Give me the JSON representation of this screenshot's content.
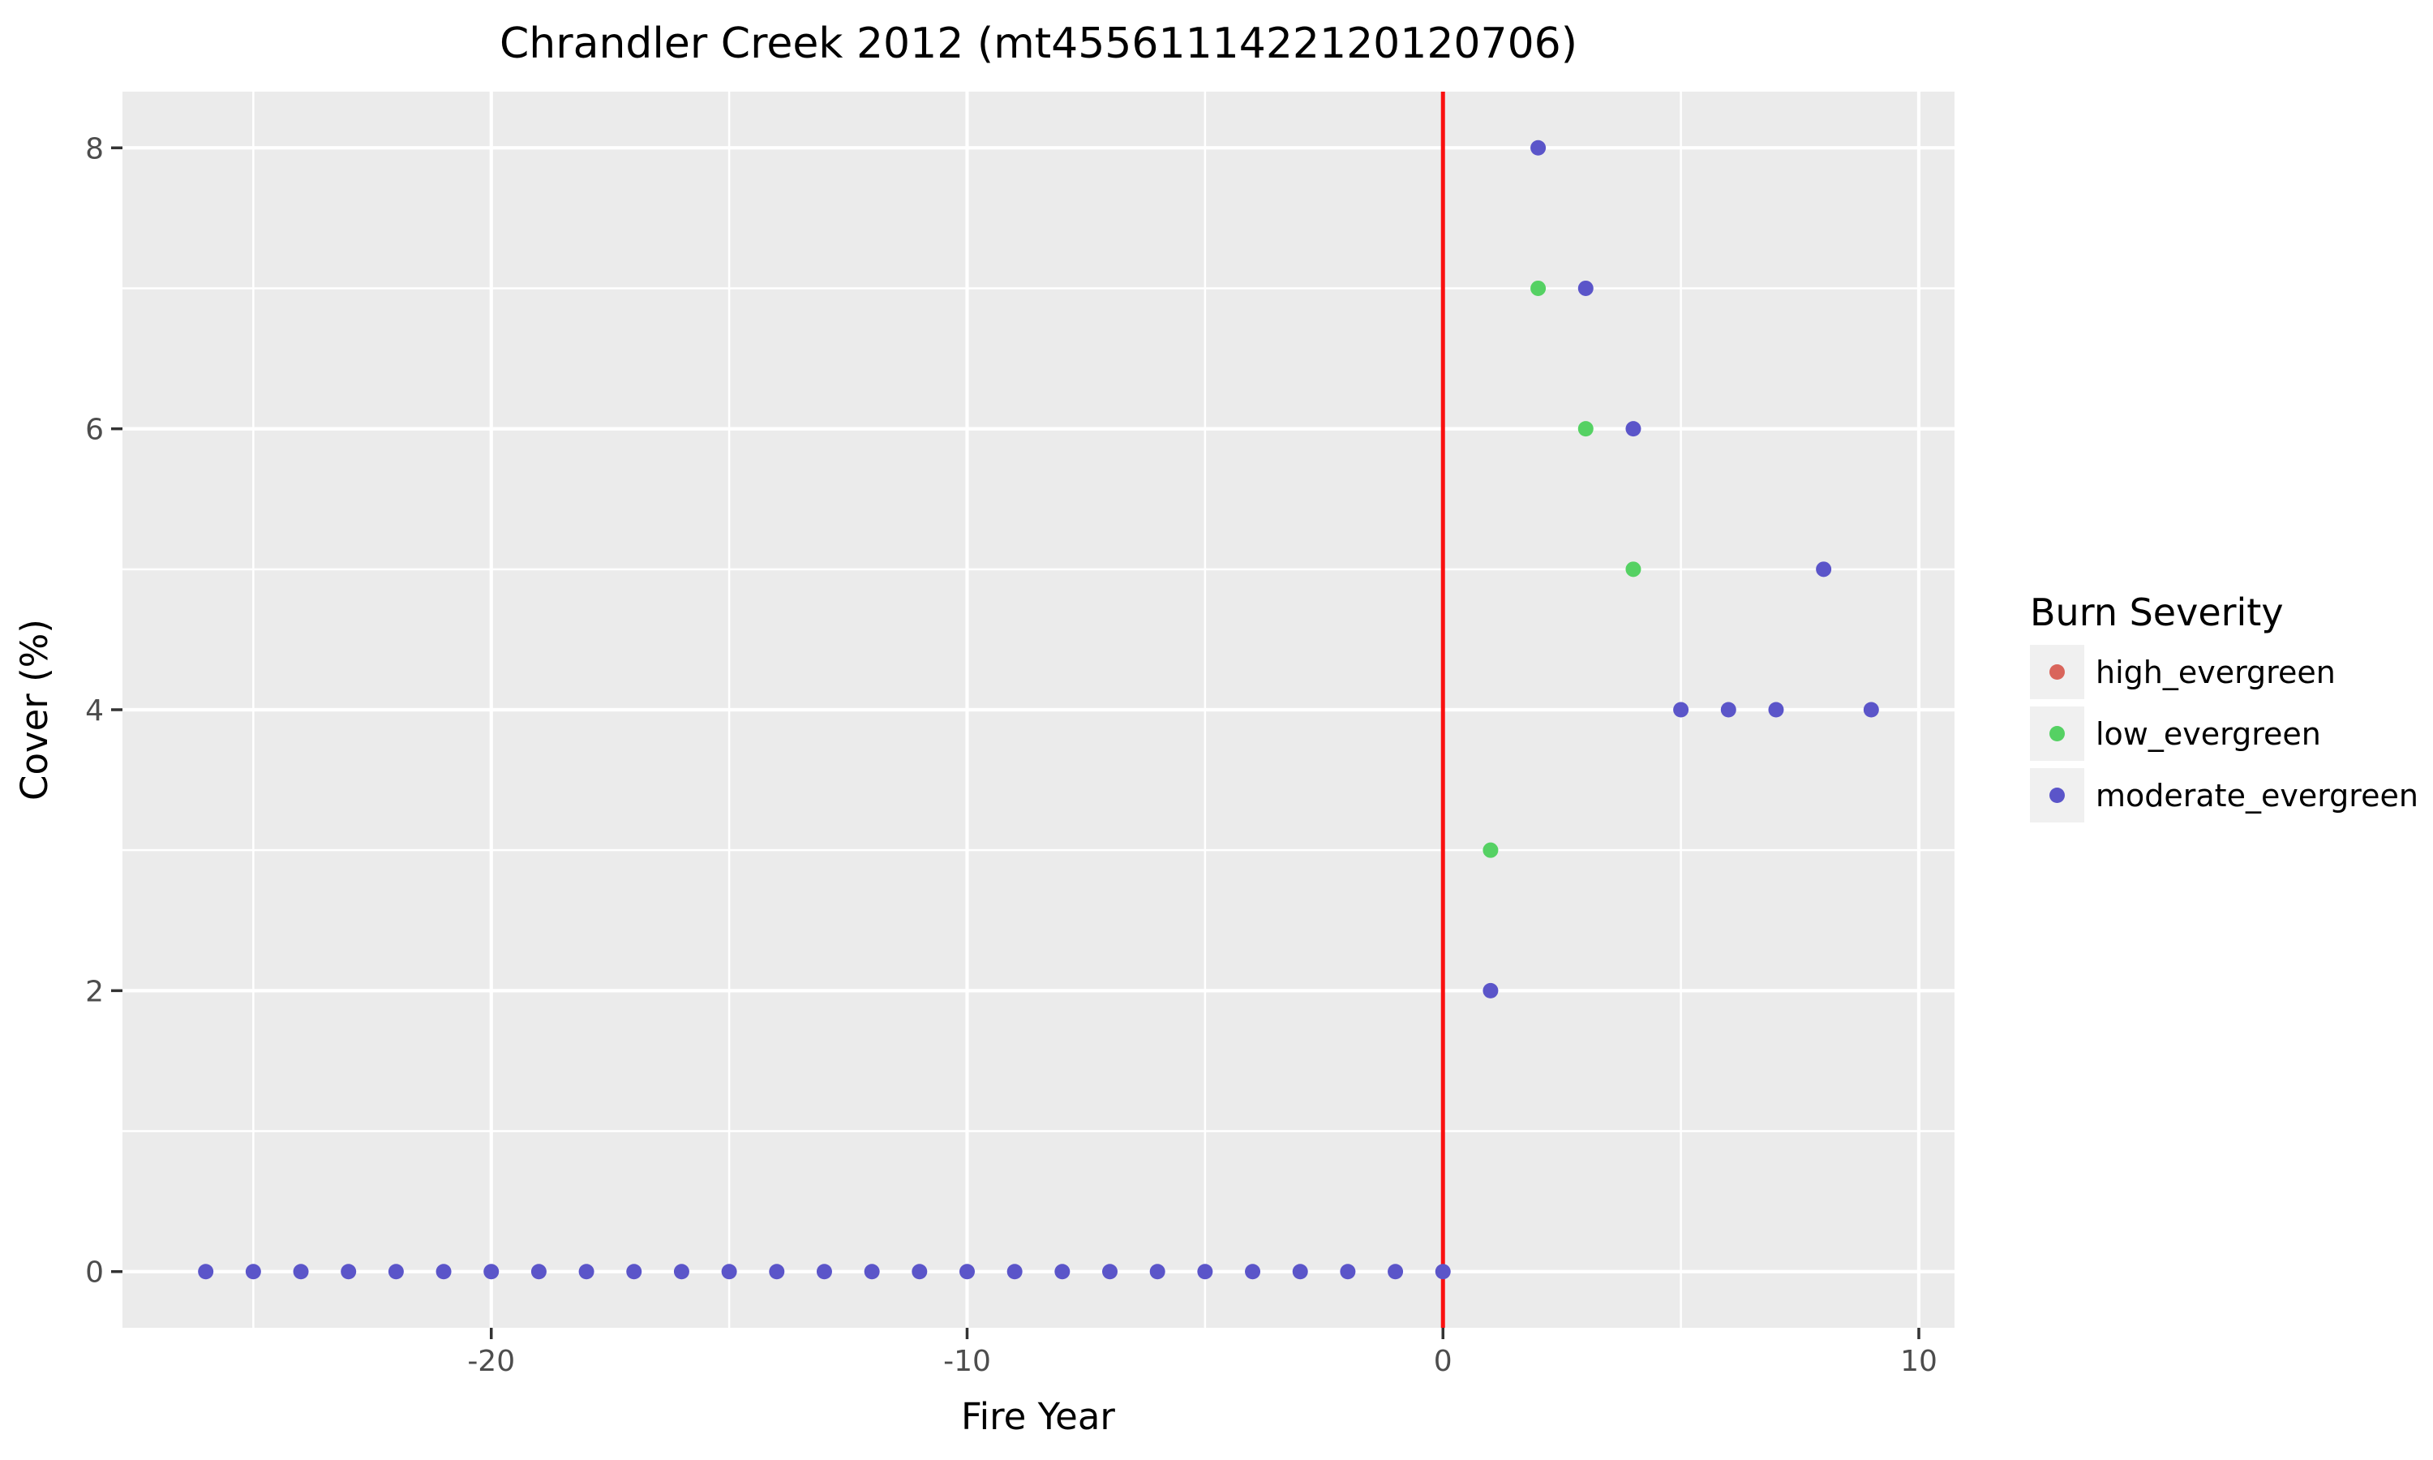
{
  "title": "Chrandler Creek 2012 (mt4556111422120120706)",
  "axes": {
    "x": {
      "label": "Fire Year",
      "tick_labels": [
        "-20",
        "-10",
        "0",
        "10"
      ]
    },
    "y": {
      "label": "Cover (%)",
      "tick_labels": [
        "0",
        "2",
        "4",
        "6",
        "8"
      ]
    }
  },
  "legend": {
    "title": "Burn Severity",
    "entries": [
      {
        "label": "high_evergreen",
        "color": "#d9655b"
      },
      {
        "label": "low_evergreen",
        "color": "#55d163"
      },
      {
        "label": "moderate_evergreen",
        "color": "#5b55c9"
      }
    ]
  },
  "chart_data": {
    "type": "scatter",
    "title": "Chrandler Creek 2012 (mt4556111422120120706)",
    "xlabel": "Fire Year",
    "ylabel": "Cover (%)",
    "xlim": [
      -27.75,
      10.75
    ],
    "ylim": [
      -0.4,
      8.4
    ],
    "x_major_ticks": [
      -20,
      -10,
      0,
      10
    ],
    "x_tick_labels": [
      "-20",
      "-10",
      "0",
      "10"
    ],
    "x_minor_gridlines": [
      -25,
      -15,
      -5,
      5
    ],
    "y_major_ticks": [
      0,
      2,
      4,
      6,
      8
    ],
    "y_tick_labels": [
      "0",
      "2",
      "4",
      "6",
      "8"
    ],
    "y_minor_gridlines": [
      1,
      3,
      5,
      7
    ],
    "grid": true,
    "legend_position": "right",
    "panel_bg": "#ebebeb",
    "grid_color": "#ffffff",
    "tick_color": "#333333",
    "vline": {
      "x": 0,
      "color": "#fa1010"
    },
    "series": [
      {
        "name": "high_evergreen",
        "color": "#d9655b",
        "points": []
      },
      {
        "name": "low_evergreen",
        "color": "#55d163",
        "points": [
          [
            1,
            3
          ],
          [
            2,
            7
          ],
          [
            3,
            6
          ],
          [
            4,
            5
          ]
        ]
      },
      {
        "name": "moderate_evergreen",
        "color": "#5b55c9",
        "points": [
          [
            -26,
            0
          ],
          [
            -25,
            0
          ],
          [
            -24,
            0
          ],
          [
            -23,
            0
          ],
          [
            -22,
            0
          ],
          [
            -21,
            0
          ],
          [
            -20,
            0
          ],
          [
            -19,
            0
          ],
          [
            -18,
            0
          ],
          [
            -17,
            0
          ],
          [
            -16,
            0
          ],
          [
            -15,
            0
          ],
          [
            -14,
            0
          ],
          [
            -13,
            0
          ],
          [
            -12,
            0
          ],
          [
            -11,
            0
          ],
          [
            -10,
            0
          ],
          [
            -9,
            0
          ],
          [
            -8,
            0
          ],
          [
            -7,
            0
          ],
          [
            -6,
            0
          ],
          [
            -5,
            0
          ],
          [
            -4,
            0
          ],
          [
            -3,
            0
          ],
          [
            -2,
            0
          ],
          [
            -1,
            0
          ],
          [
            0,
            0
          ],
          [
            1,
            2
          ],
          [
            2,
            8
          ],
          [
            3,
            7
          ],
          [
            4,
            6
          ],
          [
            5,
            4
          ],
          [
            6,
            4
          ],
          [
            7,
            4
          ],
          [
            8,
            5
          ],
          [
            9,
            4
          ]
        ]
      }
    ]
  }
}
